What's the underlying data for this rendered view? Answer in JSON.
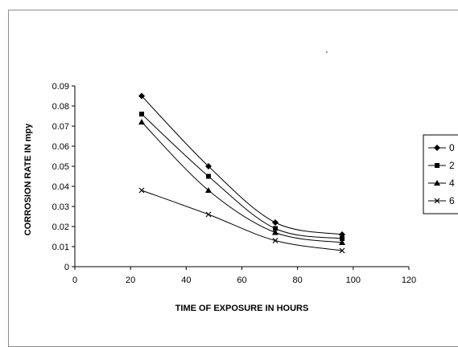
{
  "chart_data": {
    "type": "line",
    "title": "",
    "xlabel": "TIME OF EXPOSURE IN HOURS",
    "ylabel": "CORROSION RATE IN mpy",
    "xlim": [
      0,
      120
    ],
    "ylim": [
      0,
      0.09
    ],
    "xticks": [
      0,
      20,
      40,
      60,
      80,
      100,
      120
    ],
    "yticks": [
      0,
      0.01,
      0.02,
      0.03,
      0.04,
      0.05,
      0.06,
      0.07,
      0.08,
      0.09
    ],
    "ytick_labels": [
      "0",
      "0.01",
      "0.02",
      "0.03",
      "0.04",
      "0.05",
      "0.06",
      "0.07",
      "0.08",
      "0.09"
    ],
    "grid": false,
    "legend_position": "right",
    "x": [
      24,
      48,
      72,
      96
    ],
    "series": [
      {
        "name": "0",
        "marker": "diamond",
        "values": [
          0.085,
          0.05,
          0.022,
          0.016
        ]
      },
      {
        "name": "2",
        "marker": "square",
        "values": [
          0.076,
          0.045,
          0.019,
          0.014
        ]
      },
      {
        "name": "4",
        "marker": "triangle",
        "values": [
          0.072,
          0.038,
          0.017,
          0.012
        ]
      },
      {
        "name": "6",
        "marker": "x",
        "values": [
          0.038,
          0.026,
          0.013,
          0.008
        ]
      }
    ],
    "colors": {
      "line": "#000000",
      "axis": "#000000",
      "frame": "#8c8c8c"
    }
  }
}
